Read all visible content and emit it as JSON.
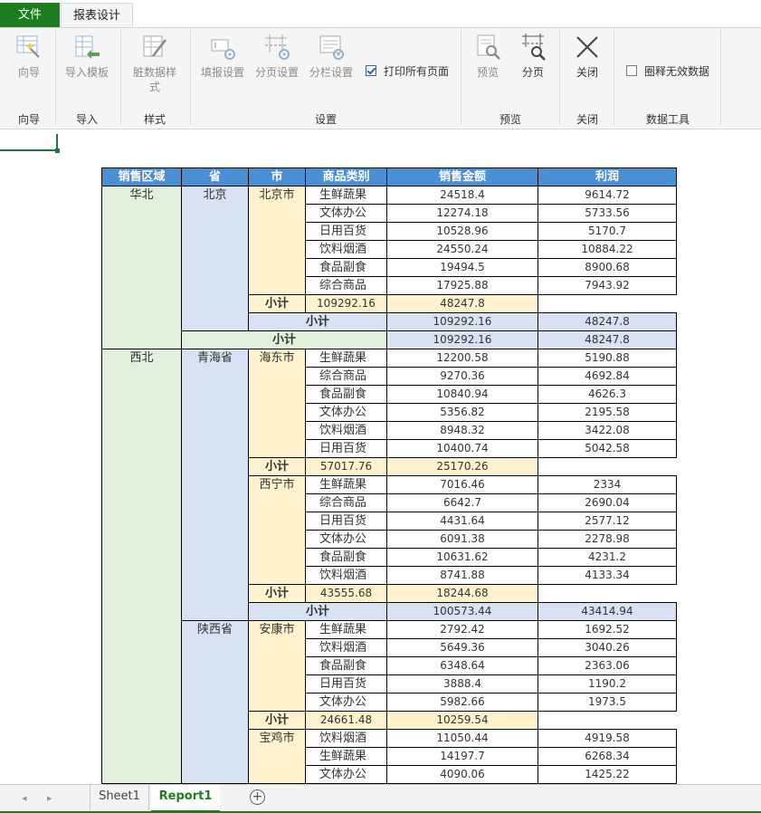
{
  "tabs": {
    "file": "文件",
    "design": "报表设计"
  },
  "ribbon": {
    "buttons": {
      "wizard": "向导",
      "import_template": "导入模板",
      "dirty_style": "脏数据样式",
      "fill_settings": "填报设置",
      "page_settings": "分页设置",
      "column_settings": "分栏设置",
      "print_all": "打印所有页面",
      "preview": "预览",
      "paging": "分页",
      "close": "关闭",
      "circle_invalid": "圈释无效数据"
    },
    "groups": {
      "wizard": "向导",
      "import": "导入",
      "style": "样式",
      "settings": "设置",
      "preview": "预览",
      "close": "关闭",
      "data_tools": "数据工具"
    },
    "print_all_checked": true,
    "circle_invalid_checked": false
  },
  "report": {
    "headers": [
      "销售区域",
      "省",
      "市",
      "商品类别",
      "销售金额",
      "利润"
    ],
    "subtotal_label": "小计",
    "regions": [
      {
        "name": "华北",
        "subtotal": [
          "109292.16",
          "48247.8"
        ],
        "provinces": [
          {
            "name": "北京",
            "subtotal": [
              "109292.16",
              "48247.8"
            ],
            "cities": [
              {
                "name": "北京市",
                "subtotal": [
                  "109292.16",
                  "48247.8"
                ],
                "rows": [
                  [
                    "生鲜蔬果",
                    "24518.4",
                    "9614.72"
                  ],
                  [
                    "文体办公",
                    "12274.18",
                    "5733.56"
                  ],
                  [
                    "日用百货",
                    "10528.96",
                    "5170.7"
                  ],
                  [
                    "饮料烟酒",
                    "24550.24",
                    "10884.22"
                  ],
                  [
                    "食品副食",
                    "19494.5",
                    "8900.68"
                  ],
                  [
                    "综合商品",
                    "17925.88",
                    "7943.92"
                  ]
                ]
              }
            ]
          }
        ]
      },
      {
        "name": "西北",
        "subtotal": null,
        "provinces": [
          {
            "name": "青海省",
            "subtotal": [
              "100573.44",
              "43414.94"
            ],
            "cities": [
              {
                "name": "海东市",
                "subtotal": [
                  "57017.76",
                  "25170.26"
                ],
                "rows": [
                  [
                    "生鲜蔬果",
                    "12200.58",
                    "5190.88"
                  ],
                  [
                    "综合商品",
                    "9270.36",
                    "4692.84"
                  ],
                  [
                    "食品副食",
                    "10840.94",
                    "4626.3"
                  ],
                  [
                    "文体办公",
                    "5356.82",
                    "2195.58"
                  ],
                  [
                    "饮料烟酒",
                    "8948.32",
                    "3422.08"
                  ],
                  [
                    "日用百货",
                    "10400.74",
                    "5042.58"
                  ]
                ]
              },
              {
                "name": "西宁市",
                "subtotal": [
                  "43555.68",
                  "18244.68"
                ],
                "rows": [
                  [
                    "生鲜蔬果",
                    "7016.46",
                    "2334"
                  ],
                  [
                    "综合商品",
                    "6642.7",
                    "2690.04"
                  ],
                  [
                    "日用百货",
                    "4431.64",
                    "2577.12"
                  ],
                  [
                    "文体办公",
                    "6091.38",
                    "2278.98"
                  ],
                  [
                    "食品副食",
                    "10631.62",
                    "4231.2"
                  ],
                  [
                    "饮料烟酒",
                    "8741.88",
                    "4133.34"
                  ]
                ]
              }
            ]
          },
          {
            "name": "陕西省",
            "subtotal": null,
            "cities": [
              {
                "name": "安康市",
                "subtotal": [
                  "24661.48",
                  "10259.54"
                ],
                "rows": [
                  [
                    "生鲜蔬果",
                    "2792.42",
                    "1692.52"
                  ],
                  [
                    "饮料烟酒",
                    "5649.36",
                    "3040.26"
                  ],
                  [
                    "食品副食",
                    "6348.64",
                    "2363.06"
                  ],
                  [
                    "日用百货",
                    "3888.4",
                    "1190.2"
                  ],
                  [
                    "文体办公",
                    "5982.66",
                    "1973.5"
                  ]
                ]
              },
              {
                "name": "宝鸡市",
                "subtotal": null,
                "rows": [
                  [
                    "饮料烟酒",
                    "11050.44",
                    "4919.58"
                  ],
                  [
                    "生鲜蔬果",
                    "14197.7",
                    "6268.34"
                  ],
                  [
                    "文体办公",
                    "4090.06",
                    "1425.22"
                  ]
                ]
              }
            ]
          }
        ]
      }
    ]
  },
  "sheets": {
    "tabs": [
      "Sheet1",
      "Report1"
    ],
    "active": "Report1"
  },
  "colors": {
    "accent": "#1e7d1e",
    "header": "#4a8fd4",
    "region": "#e2efda",
    "province": "#d9e2f2",
    "city": "#fff2cc"
  }
}
